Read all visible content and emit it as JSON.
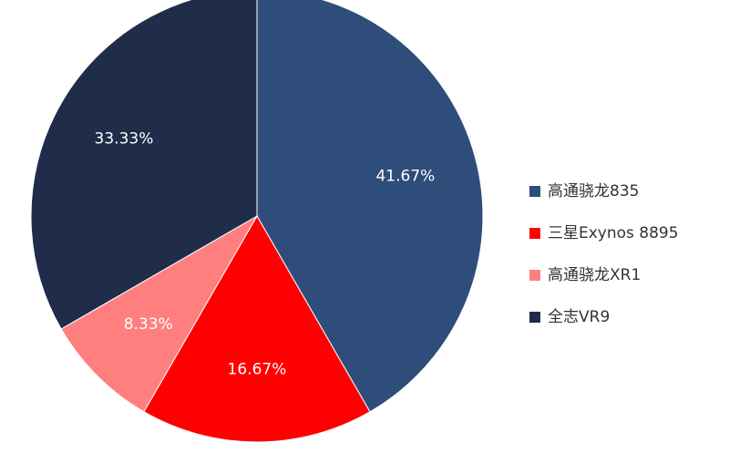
{
  "chart_data": {
    "type": "pie",
    "title": "",
    "legend_position": "right",
    "start_angle_deg": 0,
    "direction": "clockwise",
    "slices": [
      {
        "label": "高通骁龙835",
        "value": 41.67,
        "value_label": "41.67%",
        "color": "#2F4D7A"
      },
      {
        "label": "三星Exynos 8895",
        "value": 16.67,
        "value_label": "16.67%",
        "color": "#FF0000"
      },
      {
        "label": "高通骁龙XR1",
        "value": 8.33,
        "value_label": "8.33%",
        "color": "#FF7F7F"
      },
      {
        "label": "全志VR9",
        "value": 33.33,
        "value_label": "33.33%",
        "color": "#1F2D4A"
      }
    ]
  }
}
